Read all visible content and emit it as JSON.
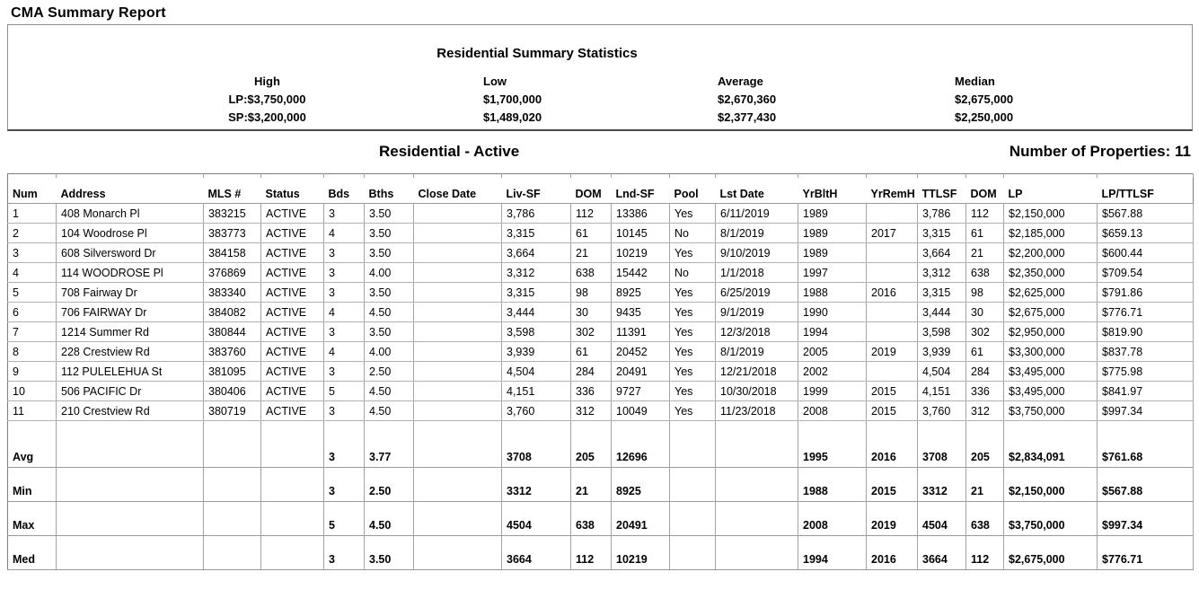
{
  "title": "CMA Summary Report",
  "stats": {
    "heading": "Residential Summary Statistics",
    "columns": [
      {
        "label": "High",
        "lp": "LP:$3,750,000",
        "sp": "SP:$3,200,000"
      },
      {
        "label": "Low",
        "lp": "$1,700,000",
        "sp": "$1,489,020"
      },
      {
        "label": "Average",
        "lp": "$2,670,360",
        "sp": "$2,377,430"
      },
      {
        "label": "Median",
        "lp": "$2,675,000",
        "sp": "$2,250,000"
      }
    ]
  },
  "section": {
    "heading": "Residential - Active",
    "count_label": "Number of Properties: 11"
  },
  "table": {
    "headers": [
      "Num",
      "Address",
      "MLS #",
      "Status",
      "Bds",
      "Bths",
      "Close Date",
      "Liv-SF",
      "DOM",
      "Lnd-SF",
      "Pool",
      "Lst Date",
      "YrBltH",
      "YrRemH",
      "TTLSF",
      "DOM",
      "LP",
      "LP/TTLSF"
    ],
    "rows": [
      [
        "1",
        "408 Monarch Pl",
        "383215",
        "ACTIVE",
        "3",
        "3.50",
        "",
        "3,786",
        "112",
        "13386",
        "Yes",
        "6/11/2019",
        "1989",
        "",
        "3,786",
        "112",
        "$2,150,000",
        "$567.88"
      ],
      [
        "2",
        "104 Woodrose Pl",
        "383773",
        "ACTIVE",
        "4",
        "3.50",
        "",
        "3,315",
        "61",
        "10145",
        "No",
        "8/1/2019",
        "1989",
        "2017",
        "3,315",
        "61",
        "$2,185,000",
        "$659.13"
      ],
      [
        "3",
        "608 Silversword Dr",
        "384158",
        "ACTIVE",
        "3",
        "3.50",
        "",
        "3,664",
        "21",
        "10219",
        "Yes",
        "9/10/2019",
        "1989",
        "",
        "3,664",
        "21",
        "$2,200,000",
        "$600.44"
      ],
      [
        "4",
        "114 WOODROSE Pl",
        "376869",
        "ACTIVE",
        "3",
        "4.00",
        "",
        "3,312",
        "638",
        "15442",
        "No",
        "1/1/2018",
        "1997",
        "",
        "3,312",
        "638",
        "$2,350,000",
        "$709.54"
      ],
      [
        "5",
        "708 Fairway Dr",
        "383340",
        "ACTIVE",
        "3",
        "3.50",
        "",
        "3,315",
        "98",
        "8925",
        "Yes",
        "6/25/2019",
        "1988",
        "2016",
        "3,315",
        "98",
        "$2,625,000",
        "$791.86"
      ],
      [
        "6",
        "706 FAIRWAY Dr",
        "384082",
        "ACTIVE",
        "4",
        "4.50",
        "",
        "3,444",
        "30",
        "9435",
        "Yes",
        "9/1/2019",
        "1990",
        "",
        "3,444",
        "30",
        "$2,675,000",
        "$776.71"
      ],
      [
        "7",
        "1214 Summer Rd",
        "380844",
        "ACTIVE",
        "3",
        "3.50",
        "",
        "3,598",
        "302",
        "11391",
        "Yes",
        "12/3/2018",
        "1994",
        "",
        "3,598",
        "302",
        "$2,950,000",
        "$819.90"
      ],
      [
        "8",
        "228 Crestview Rd",
        "383760",
        "ACTIVE",
        "4",
        "4.00",
        "",
        "3,939",
        "61",
        "20452",
        "Yes",
        "8/1/2019",
        "2005",
        "2019",
        "3,939",
        "61",
        "$3,300,000",
        "$837.78"
      ],
      [
        "9",
        "112 PULELEHUA St",
        "381095",
        "ACTIVE",
        "3",
        "2.50",
        "",
        "4,504",
        "284",
        "20491",
        "Yes",
        "12/21/2018",
        "2002",
        "",
        "4,504",
        "284",
        "$3,495,000",
        "$775.98"
      ],
      [
        "10",
        "506 PACIFIC Dr",
        "380406",
        "ACTIVE",
        "5",
        "4.50",
        "",
        "4,151",
        "336",
        "9727",
        "Yes",
        "10/30/2018",
        "1999",
        "2015",
        "4,151",
        "336",
        "$3,495,000",
        "$841.97"
      ],
      [
        "11",
        "210 Crestview Rd",
        "380719",
        "ACTIVE",
        "3",
        "4.50",
        "",
        "3,760",
        "312",
        "10049",
        "Yes",
        "11/23/2018",
        "2008",
        "2015",
        "3,760",
        "312",
        "$3,750,000",
        "$997.34"
      ]
    ],
    "summary_rows": [
      [
        "Avg",
        "",
        "",
        "",
        "3",
        "3.77",
        "",
        "3708",
        "205",
        "12696",
        "",
        "",
        "1995",
        "2016",
        "3708",
        "205",
        "$2,834,091",
        "$761.68"
      ],
      [
        "Min",
        "",
        "",
        "",
        "3",
        "2.50",
        "",
        "3312",
        "21",
        "8925",
        "",
        "",
        "1988",
        "2015",
        "3312",
        "21",
        "$2,150,000",
        "$567.88"
      ],
      [
        "Max",
        "",
        "",
        "",
        "5",
        "4.50",
        "",
        "4504",
        "638",
        "20491",
        "",
        "",
        "2008",
        "2019",
        "4504",
        "638",
        "$3,750,000",
        "$997.34"
      ],
      [
        "Med",
        "",
        "",
        "",
        "3",
        "3.50",
        "",
        "3664",
        "112",
        "10219",
        "",
        "",
        "1994",
        "2016",
        "3664",
        "112",
        "$2,675,000",
        "$776.71"
      ]
    ]
  }
}
